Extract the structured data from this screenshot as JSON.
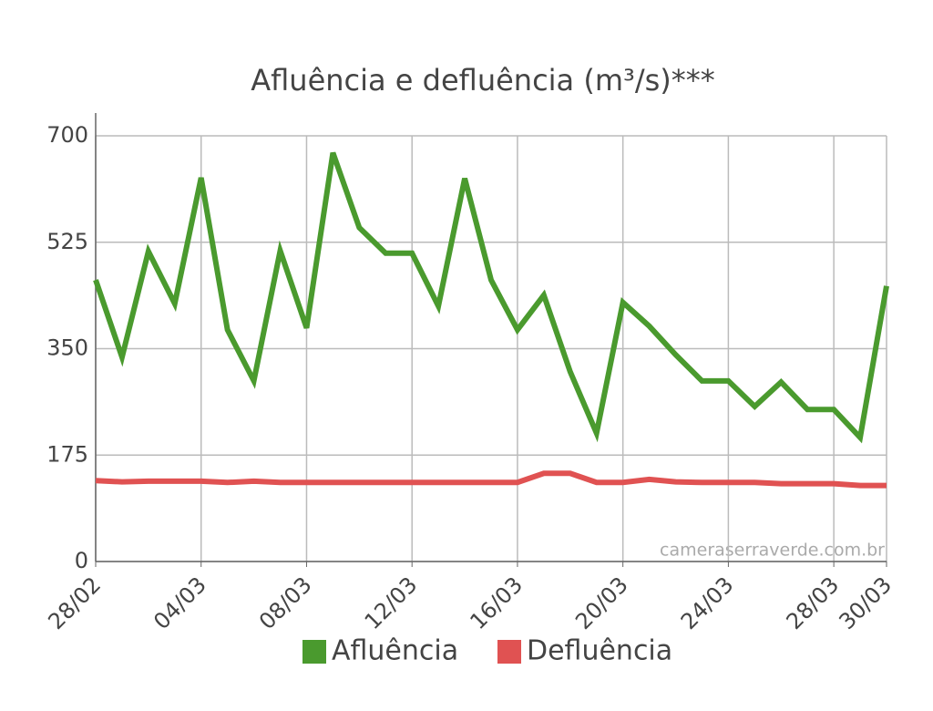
{
  "chart_data": {
    "type": "line",
    "title": "Afluência e defluência (m³/s)***",
    "annotation": "cameraserraverde.com.br",
    "categories": [
      "28/02",
      null,
      null,
      null,
      "04/03",
      null,
      null,
      null,
      "08/03",
      null,
      null,
      null,
      "12/03",
      null,
      null,
      null,
      "16/03",
      null,
      null,
      null,
      "20/03",
      null,
      null,
      null,
      "24/03",
      null,
      null,
      null,
      "28/03",
      null,
      "30/03"
    ],
    "series": [
      {
        "name": "Afluência",
        "color": "#4a9a2e",
        "values": [
          463,
          336,
          510,
          424,
          631,
          381,
          297,
          511,
          384,
          672,
          549,
          507,
          507,
          420,
          630,
          463,
          381,
          438,
          312,
          211,
          426,
          387,
          340,
          297,
          297,
          255,
          295,
          250,
          250,
          204,
          453
        ]
      },
      {
        "name": "Defluência",
        "color": "#e05252",
        "values": [
          133,
          131,
          132,
          132,
          132,
          130,
          132,
          130,
          130,
          130,
          130,
          130,
          130,
          130,
          130,
          130,
          130,
          145,
          145,
          130,
          130,
          135,
          131,
          130,
          130,
          130,
          128,
          128,
          128,
          125,
          125
        ]
      }
    ],
    "ylim": [
      0,
      700
    ],
    "yticks": [
      0,
      175,
      350,
      525,
      700
    ],
    "grid": true,
    "legend": "bottom"
  }
}
